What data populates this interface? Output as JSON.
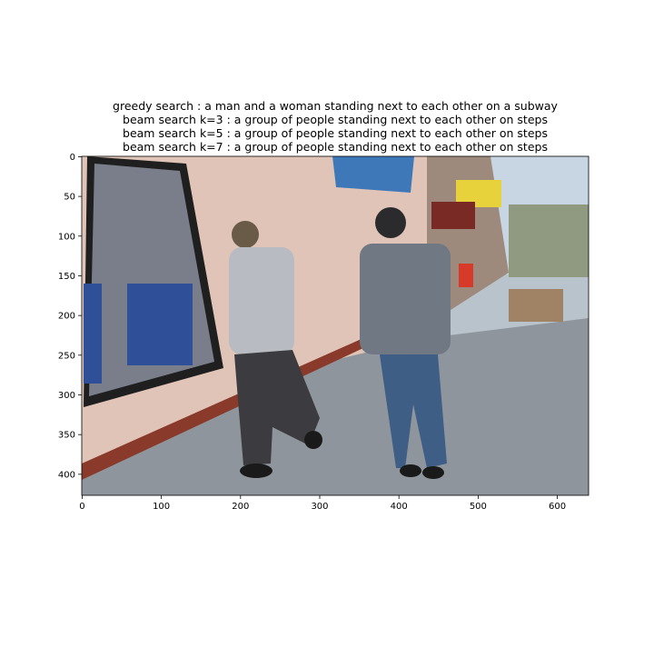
{
  "chart_data": {
    "type": "image",
    "title_lines": [
      "greedy search : a man and a woman standing next to each other on a subway",
      "beam search k=3 :  a group of people standing next to each other on steps",
      "beam search k=5 :  a group of people standing next to each other on steps",
      "beam search k=7 :  a group of people standing next to each other on steps"
    ],
    "xlim": [
      -0.5,
      639.5
    ],
    "ylim": [
      426.5,
      -0.5
    ],
    "xticks": [
      0,
      100,
      200,
      300,
      400,
      500,
      600
    ],
    "yticks": [
      0,
      50,
      100,
      150,
      200,
      250,
      300,
      350,
      400
    ]
  }
}
